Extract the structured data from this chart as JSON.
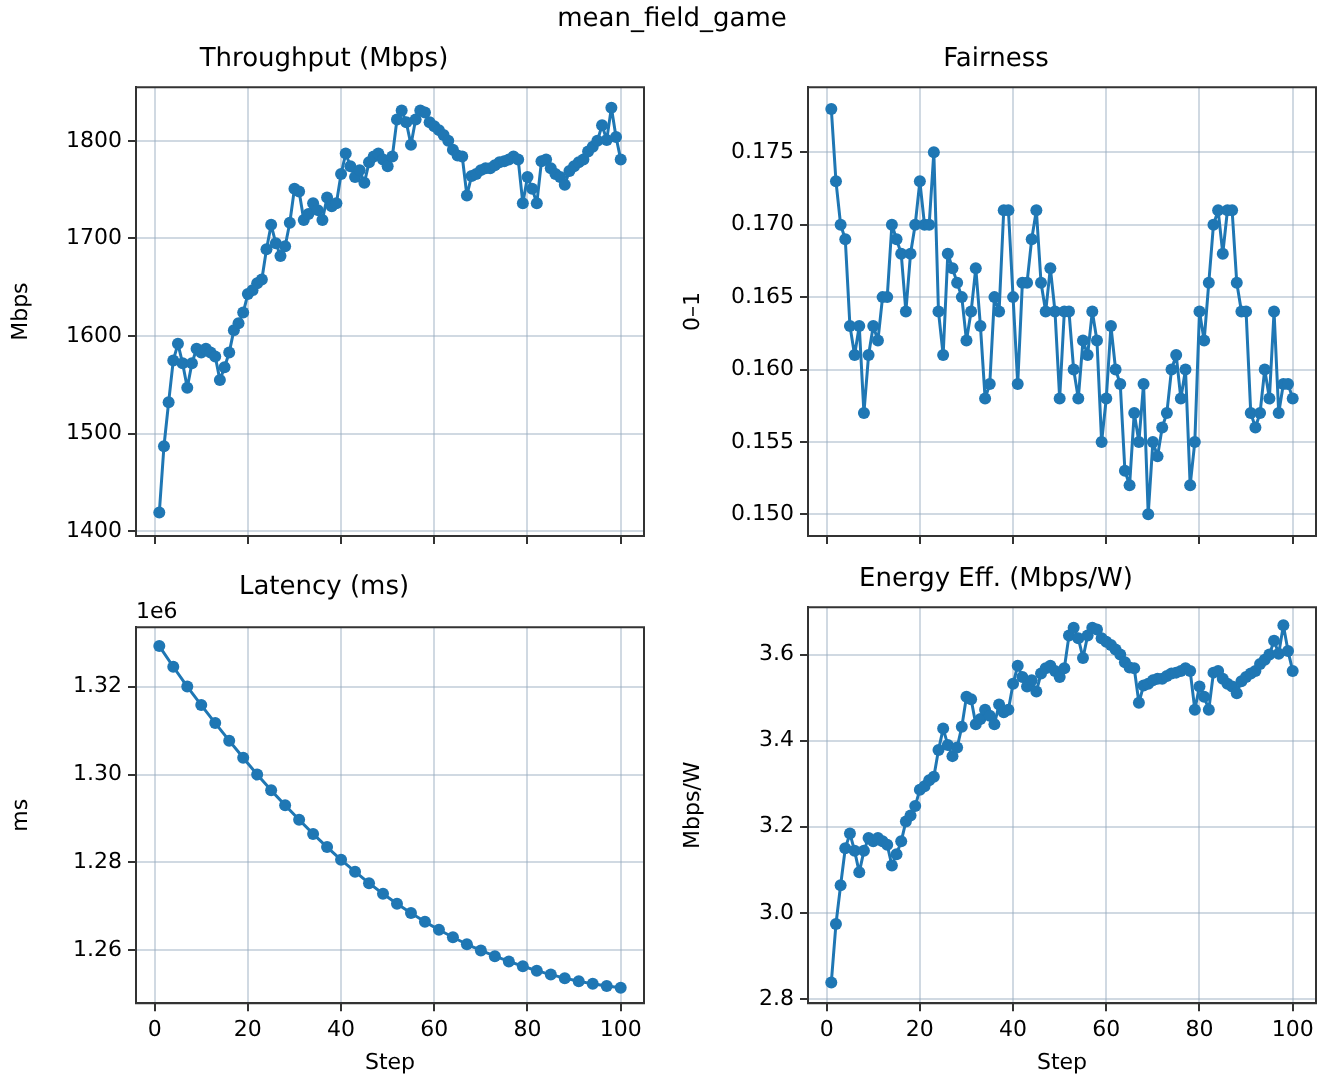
{
  "chart_data": [
    {
      "type": "other",
      "title": "mean_field_game"
    },
    {
      "type": "line",
      "title": "Throughput (Mbps)",
      "ylabel": "Mbps",
      "x": [
        1,
        2,
        3,
        4,
        5,
        6,
        7,
        8,
        9,
        10,
        11,
        12,
        13,
        14,
        15,
        16,
        17,
        18,
        19,
        20,
        21,
        22,
        23,
        24,
        25,
        26,
        27,
        28,
        29,
        30,
        31,
        32,
        33,
        34,
        35,
        36,
        37,
        38,
        39,
        40,
        41,
        42,
        43,
        44,
        45,
        46,
        47,
        48,
        49,
        50,
        51,
        52,
        53,
        54,
        55,
        56,
        57,
        58,
        59,
        60,
        61,
        62,
        63,
        64,
        65,
        66,
        67,
        68,
        69,
        70,
        71,
        72,
        73,
        74,
        75,
        76,
        77,
        78,
        79,
        80,
        81,
        82,
        83,
        84,
        85,
        86,
        87,
        88,
        89,
        90,
        91,
        92,
        93,
        94,
        95,
        96,
        97,
        98,
        99,
        100
      ],
      "series": [
        {
          "color": "#1f77b4",
          "values": [
            1419,
            1487,
            1532,
            1575,
            1592,
            1572,
            1547,
            1572,
            1587,
            1583,
            1587,
            1583,
            1579,
            1555,
            1568,
            1583,
            1606,
            1613,
            1624,
            1643,
            1647,
            1654,
            1658,
            1689,
            1714,
            1695,
            1682,
            1692,
            1716,
            1751,
            1748,
            1719,
            1725,
            1736,
            1729,
            1719,
            1742,
            1733,
            1736,
            1766,
            1787,
            1774,
            1763,
            1770,
            1757,
            1778,
            1784,
            1787,
            1781,
            1774,
            1784,
            1822,
            1831,
            1819,
            1796,
            1822,
            1831,
            1829,
            1819,
            1815,
            1811,
            1806,
            1800,
            1791,
            1785,
            1784,
            1744,
            1764,
            1766,
            1770,
            1772,
            1772,
            1775,
            1778,
            1779,
            1781,
            1784,
            1781,
            1736,
            1763,
            1751,
            1736,
            1779,
            1781,
            1772,
            1766,
            1763,
            1755,
            1769,
            1774,
            1778,
            1781,
            1789,
            1794,
            1800,
            1816,
            1801,
            1834,
            1804,
            1781
          ]
        }
      ],
      "xlim": [
        -4,
        105
      ],
      "xticks": [
        0,
        20,
        40,
        60,
        80,
        100
      ],
      "ylim": [
        1395,
        1855
      ],
      "yticks": [
        1400,
        1500,
        1600,
        1700,
        1800
      ],
      "grid": true,
      "marker": "circle",
      "tick_labels": "y"
    },
    {
      "type": "line",
      "title": "Fairness",
      "ylabel": "0–1",
      "x": [
        1,
        2,
        3,
        4,
        5,
        6,
        7,
        8,
        9,
        10,
        11,
        12,
        13,
        14,
        15,
        16,
        17,
        18,
        19,
        20,
        21,
        22,
        23,
        24,
        25,
        26,
        27,
        28,
        29,
        30,
        31,
        32,
        33,
        34,
        35,
        36,
        37,
        38,
        39,
        40,
        41,
        42,
        43,
        44,
        45,
        46,
        47,
        48,
        49,
        50,
        51,
        52,
        53,
        54,
        55,
        56,
        57,
        58,
        59,
        60,
        61,
        62,
        63,
        64,
        65,
        66,
        67,
        68,
        69,
        70,
        71,
        72,
        73,
        74,
        75,
        76,
        77,
        78,
        79,
        80,
        81,
        82,
        83,
        84,
        85,
        86,
        87,
        88,
        89,
        90,
        91,
        92,
        93,
        94,
        95,
        96,
        97,
        98,
        99,
        100
      ],
      "series": [
        {
          "color": "#1f77b4",
          "values": [
            0.178,
            0.173,
            0.17,
            0.169,
            0.163,
            0.161,
            0.163,
            0.157,
            0.161,
            0.163,
            0.162,
            0.165,
            0.165,
            0.17,
            0.169,
            0.168,
            0.164,
            0.168,
            0.17,
            0.173,
            0.17,
            0.17,
            0.175,
            0.164,
            0.161,
            0.168,
            0.167,
            0.166,
            0.165,
            0.162,
            0.164,
            0.167,
            0.163,
            0.158,
            0.159,
            0.165,
            0.164,
            0.171,
            0.171,
            0.165,
            0.159,
            0.166,
            0.166,
            0.169,
            0.171,
            0.166,
            0.164,
            0.167,
            0.164,
            0.158,
            0.164,
            0.164,
            0.16,
            0.158,
            0.162,
            0.161,
            0.164,
            0.162,
            0.155,
            0.158,
            0.163,
            0.16,
            0.159,
            0.153,
            0.152,
            0.157,
            0.155,
            0.159,
            0.15,
            0.155,
            0.154,
            0.156,
            0.157,
            0.16,
            0.161,
            0.158,
            0.16,
            0.152,
            0.155,
            0.164,
            0.162,
            0.166,
            0.17,
            0.171,
            0.168,
            0.171,
            0.171,
            0.166,
            0.164,
            0.164,
            0.157,
            0.156,
            0.157,
            0.16,
            0.158,
            0.164,
            0.157,
            0.159,
            0.159,
            0.158
          ]
        }
      ],
      "xlim": [
        -4,
        105
      ],
      "xticks": [
        0,
        20,
        40,
        60,
        80,
        100
      ],
      "ylim": [
        0.1485,
        0.1795
      ],
      "yticks": [
        {
          "value": 0.15,
          "label": "0.150"
        },
        {
          "value": 0.155,
          "label": "0.155"
        },
        {
          "value": 0.16,
          "label": "0.160"
        },
        {
          "value": 0.165,
          "label": "0.165"
        },
        {
          "value": 0.17,
          "label": "0.170"
        },
        {
          "value": 0.175,
          "label": "0.175"
        }
      ],
      "grid": true,
      "marker": "circle",
      "tick_labels": "y"
    },
    {
      "type": "line",
      "title": "Latency (ms)",
      "xlabel": "Step",
      "ylabel": "ms",
      "annotations": [
        "1e6"
      ],
      "x": [
        1,
        4,
        7,
        10,
        13,
        16,
        19,
        22,
        25,
        28,
        31,
        34,
        37,
        40,
        43,
        46,
        49,
        52,
        55,
        58,
        61,
        64,
        67,
        70,
        73,
        76,
        79,
        82,
        85,
        88,
        91,
        94,
        97,
        100
      ],
      "series": [
        {
          "color": "#1f77b4",
          "values": [
            1.3292,
            1.3245,
            1.32,
            1.3158,
            1.3117,
            1.3077,
            1.3038,
            1.3,
            1.2964,
            1.293,
            1.2897,
            1.2865,
            1.2835,
            1.2806,
            1.2779,
            1.2753,
            1.2729,
            1.2706,
            1.2685,
            1.2665,
            1.2647,
            1.263,
            1.2614,
            1.26,
            1.2587,
            1.2575,
            1.2564,
            1.2554,
            1.2545,
            1.2537,
            1.253,
            1.2524,
            1.2519,
            1.2515
          ]
        }
      ],
      "xlim": [
        -4,
        105
      ],
      "xticks": [
        0,
        20,
        40,
        60,
        80,
        100
      ],
      "ylim": [
        1.248,
        1.3335
      ],
      "yticks": [
        1.26,
        1.28,
        {
          "value": 1.3,
          "label": "1.30"
        },
        1.32
      ],
      "grid": true,
      "marker": "circle"
    },
    {
      "type": "line",
      "title": "Energy Eff. (Mbps/W)",
      "xlabel": "Step",
      "ylabel": "Mbps/W",
      "x": [
        1,
        2,
        3,
        4,
        5,
        6,
        7,
        8,
        9,
        10,
        11,
        12,
        13,
        14,
        15,
        16,
        17,
        18,
        19,
        20,
        21,
        22,
        23,
        24,
        25,
        26,
        27,
        28,
        29,
        30,
        31,
        32,
        33,
        34,
        35,
        36,
        37,
        38,
        39,
        40,
        41,
        42,
        43,
        44,
        45,
        46,
        47,
        48,
        49,
        50,
        51,
        52,
        53,
        54,
        55,
        56,
        57,
        58,
        59,
        60,
        61,
        62,
        63,
        64,
        65,
        66,
        67,
        68,
        69,
        70,
        71,
        72,
        73,
        74,
        75,
        76,
        77,
        78,
        79,
        80,
        81,
        82,
        83,
        84,
        85,
        86,
        87,
        88,
        89,
        90,
        91,
        92,
        93,
        94,
        95,
        96,
        97,
        98,
        99,
        100
      ],
      "series": [
        {
          "color": "#1f77b4",
          "values": [
            2.838,
            2.974,
            3.064,
            3.15,
            3.184,
            3.144,
            3.094,
            3.144,
            3.174,
            3.166,
            3.174,
            3.166,
            3.158,
            3.11,
            3.136,
            3.166,
            3.212,
            3.226,
            3.248,
            3.286,
            3.294,
            3.308,
            3.316,
            3.378,
            3.428,
            3.39,
            3.364,
            3.384,
            3.432,
            3.502,
            3.496,
            3.438,
            3.45,
            3.472,
            3.458,
            3.438,
            3.484,
            3.466,
            3.472,
            3.532,
            3.574,
            3.548,
            3.526,
            3.54,
            3.514,
            3.556,
            3.568,
            3.574,
            3.562,
            3.548,
            3.568,
            3.644,
            3.662,
            3.638,
            3.592,
            3.644,
            3.662,
            3.658,
            3.638,
            3.63,
            3.622,
            3.612,
            3.6,
            3.582,
            3.57,
            3.568,
            3.488,
            3.528,
            3.532,
            3.54,
            3.544,
            3.544,
            3.55,
            3.556,
            3.558,
            3.562,
            3.568,
            3.562,
            3.472,
            3.526,
            3.502,
            3.472,
            3.558,
            3.562,
            3.544,
            3.532,
            3.526,
            3.51,
            3.538,
            3.548,
            3.556,
            3.562,
            3.578,
            3.588,
            3.6,
            3.632,
            3.602,
            3.668,
            3.608,
            3.562
          ]
        }
      ],
      "xlim": [
        -4,
        105
      ],
      "xticks": [
        0,
        20,
        40,
        60,
        80,
        100
      ],
      "ylim": [
        2.79,
        3.71
      ],
      "yticks": [
        2.8,
        {
          "value": 3,
          "label": "3.0"
        },
        3.2,
        3.4,
        3.6
      ],
      "grid": true,
      "marker": "circle"
    }
  ]
}
